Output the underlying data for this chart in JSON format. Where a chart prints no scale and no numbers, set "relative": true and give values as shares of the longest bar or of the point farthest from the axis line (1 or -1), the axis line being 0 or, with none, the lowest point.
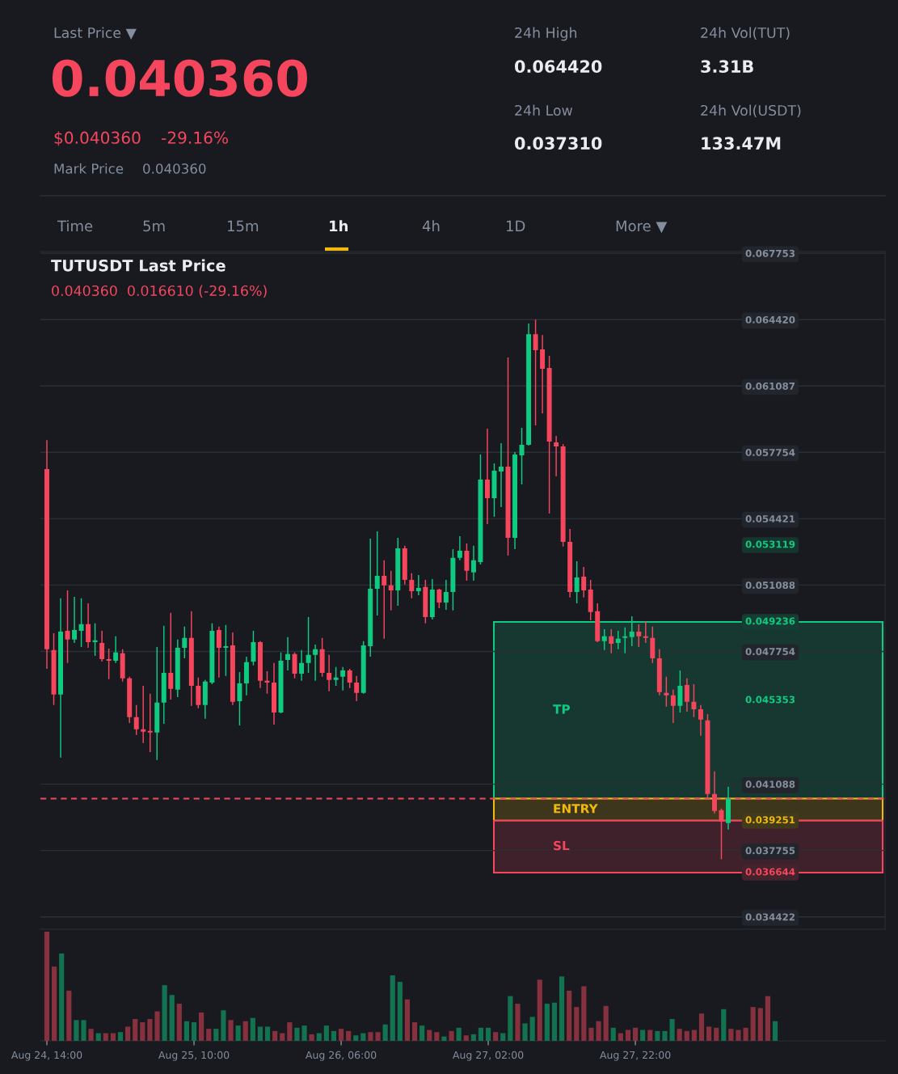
{
  "chart_data": [
    {
      "type": "other",
      "annotations": [
        "Last Price ▼",
        "0.040360",
        "$0.040360",
        "-29.16%",
        "Mark Price",
        "0.040360",
        "24h High",
        "0.064420",
        "24h Low",
        "0.037310",
        "24h Vol(TUT)",
        "3.31B",
        "24h Vol(USDT)",
        "133.47M",
        "Time",
        "5m",
        "15m",
        "1h",
        "4h",
        "1D",
        "More ▼"
      ]
    },
    {
      "type": "candlestick",
      "title": "TUTUSDT Last Price",
      "subtitle": "0.040360  0.016610 (-29.16%)",
      "categories": [
        null,
        null,
        null,
        null,
        null,
        null,
        null,
        null,
        null,
        null,
        null,
        null,
        null,
        null,
        null,
        null,
        null,
        null,
        null,
        null,
        null,
        null,
        null,
        null,
        null,
        null,
        null,
        null,
        null,
        null,
        null,
        null,
        null,
        null,
        null,
        null,
        null,
        null,
        null,
        null,
        null,
        null,
        null,
        null,
        null,
        null,
        null,
        null,
        null,
        null,
        null,
        null,
        null,
        null,
        null,
        null,
        null,
        null,
        null,
        null,
        null,
        null,
        null,
        null,
        null,
        null,
        null,
        null,
        null,
        null,
        null,
        null,
        null,
        null,
        null,
        null,
        null,
        null,
        null,
        null,
        null,
        null,
        null,
        null,
        null,
        null,
        null,
        null,
        null,
        null,
        null,
        null,
        null,
        null,
        null,
        null,
        null,
        null,
        null,
        null
      ],
      "ohlc": [
        [
          0.05691,
          0.05837,
          0.04688,
          0.04786
        ],
        [
          0.04782,
          0.04867,
          0.04506,
          0.04559
        ],
        [
          0.04559,
          0.05042,
          0.04242,
          0.04875
        ],
        [
          0.04879,
          0.05082,
          0.04717,
          0.04835
        ],
        [
          0.04835,
          0.0505,
          0.04818,
          0.04883
        ],
        [
          0.04879,
          0.05042,
          0.04798,
          0.04912
        ],
        [
          0.04912,
          0.05017,
          0.04794,
          0.04822
        ],
        [
          0.04822,
          0.04916,
          0.04753,
          0.04831
        ],
        [
          0.04818,
          0.04879,
          0.04725,
          0.04737
        ],
        [
          0.04737,
          0.0479,
          0.04636,
          0.04729
        ],
        [
          0.04729,
          0.04851,
          0.04717,
          0.0477
        ],
        [
          0.04766,
          0.04786,
          0.04624,
          0.0464
        ],
        [
          0.0464,
          0.04648,
          0.04416,
          0.04445
        ],
        [
          0.04445,
          0.04506,
          0.04356,
          0.04384
        ],
        [
          0.04384,
          0.04603,
          0.04315,
          0.04372
        ],
        [
          0.04376,
          0.04563,
          0.0427,
          0.04368
        ],
        [
          0.04368,
          0.04798,
          0.0423,
          0.04518
        ],
        [
          0.04518,
          0.04904,
          0.04412,
          0.04668
        ],
        [
          0.04668,
          0.04969,
          0.04534,
          0.04587
        ],
        [
          0.04583,
          0.04835,
          0.04546,
          0.04794
        ],
        [
          0.04794,
          0.049,
          0.04741,
          0.04843
        ],
        [
          0.04843,
          0.04977,
          0.04502,
          0.04603
        ],
        [
          0.04603,
          0.04644,
          0.0449,
          0.04506
        ],
        [
          0.04506,
          0.04632,
          0.04437,
          0.04624
        ],
        [
          0.04619,
          0.04916,
          0.04611,
          0.04879
        ],
        [
          0.04883,
          0.049,
          0.04644,
          0.04794
        ],
        [
          0.04794,
          0.04908,
          0.04652,
          0.04802
        ],
        [
          0.04806,
          0.04871,
          0.04506,
          0.04522
        ],
        [
          0.04526,
          0.04672,
          0.04404,
          0.04615
        ],
        [
          0.04615,
          0.04749,
          0.04555,
          0.04721
        ],
        [
          0.04725,
          0.04879,
          0.04705,
          0.04822
        ],
        [
          0.04822,
          0.04827,
          0.04591,
          0.04628
        ],
        [
          0.04628,
          0.04676,
          0.04563,
          0.04619
        ],
        [
          0.04619,
          0.04717,
          0.04408,
          0.04469
        ],
        [
          0.04469,
          0.0477,
          0.04465,
          0.04729
        ],
        [
          0.04733,
          0.04847,
          0.0468,
          0.04762
        ],
        [
          0.04762,
          0.0477,
          0.0464,
          0.04664
        ],
        [
          0.04664,
          0.04782,
          0.04628,
          0.04717
        ],
        [
          0.04717,
          0.04948,
          0.04668,
          0.04758
        ],
        [
          0.04758,
          0.0481,
          0.04628,
          0.04786
        ],
        [
          0.04786,
          0.04843,
          0.04648,
          0.04668
        ],
        [
          0.04668,
          0.04758,
          0.04575,
          0.04632
        ],
        [
          0.04632,
          0.04697,
          0.04603,
          0.04644
        ],
        [
          0.04648,
          0.04697,
          0.04579,
          0.0468
        ],
        [
          0.0468,
          0.04688,
          0.04591,
          0.04619
        ],
        [
          0.04619,
          0.04652,
          0.04526,
          0.04567
        ],
        [
          0.04567,
          0.04827,
          0.04563,
          0.04806
        ],
        [
          0.04802,
          0.05342,
          0.04749,
          0.0509
        ],
        [
          0.0509,
          0.05379,
          0.04956,
          0.05155
        ],
        [
          0.05155,
          0.05233,
          0.04839,
          0.05107
        ],
        [
          0.05107,
          0.0518,
          0.04981,
          0.05082
        ],
        [
          0.05082,
          0.05346,
          0.05005,
          0.05293
        ],
        [
          0.05293,
          0.05306,
          0.05111,
          0.05135
        ],
        [
          0.05135,
          0.05168,
          0.05042,
          0.05078
        ],
        [
          0.05078,
          0.05159,
          0.05058,
          0.05094
        ],
        [
          0.05099,
          0.05135,
          0.04916,
          0.04948
        ],
        [
          0.04948,
          0.05139,
          0.04936,
          0.05086
        ],
        [
          0.05086,
          0.0509,
          0.04993,
          0.05021
        ],
        [
          0.05021,
          0.05135,
          0.04985,
          0.05074
        ],
        [
          0.05074,
          0.05289,
          0.04981,
          0.05245
        ],
        [
          0.05245,
          0.05354,
          0.05233,
          0.05281
        ],
        [
          0.05281,
          0.05318,
          0.05131,
          0.0518
        ],
        [
          0.05172,
          0.05306,
          0.05131,
          0.05233
        ],
        [
          0.05224,
          0.05764,
          0.05212,
          0.05639
        ],
        [
          0.05639,
          0.05894,
          0.05415,
          0.05545
        ],
        [
          0.05545,
          0.0572,
          0.05452,
          0.05683
        ],
        [
          0.05679,
          0.05821,
          0.055,
          0.05703
        ],
        [
          0.05703,
          0.06252,
          0.05257,
          0.05346
        ],
        [
          0.05346,
          0.05777,
          0.05289,
          0.05764
        ],
        [
          0.0576,
          0.05898,
          0.05614,
          0.05813
        ],
        [
          0.05813,
          0.06422,
          0.05809,
          0.06369
        ],
        [
          0.06369,
          0.06442,
          0.05911,
          0.06288
        ],
        [
          0.06292,
          0.06365,
          0.05971,
          0.06195
        ],
        [
          0.06199,
          0.0626,
          0.05468,
          0.05829
        ],
        [
          0.05825,
          0.05858,
          0.05655,
          0.05805
        ],
        [
          0.05805,
          0.05817,
          0.05302,
          0.05326
        ],
        [
          0.05326,
          0.05391,
          0.05046,
          0.05074
        ],
        [
          0.05074,
          0.05228,
          0.05017,
          0.05147
        ],
        [
          0.05151,
          0.052,
          0.05046,
          0.05082
        ],
        [
          0.05086,
          0.05135,
          0.04932,
          0.04973
        ],
        [
          0.04977,
          0.05017,
          0.04822,
          0.04827
        ],
        [
          0.04827,
          0.04887,
          0.04782,
          0.04851
        ],
        [
          0.04851,
          0.04887,
          0.04766,
          0.04814
        ],
        [
          0.04818,
          0.04879,
          0.04786,
          0.04839
        ],
        [
          0.04843,
          0.04896,
          0.04766,
          0.04851
        ],
        [
          0.04847,
          0.04952,
          0.04802,
          0.04875
        ],
        [
          0.04875,
          0.04912,
          0.04798,
          0.04851
        ],
        [
          0.04851,
          0.04928,
          0.04818,
          0.04843
        ],
        [
          0.04843,
          0.049,
          0.04717,
          0.04741
        ],
        [
          0.04741,
          0.04786,
          0.04555,
          0.04571
        ],
        [
          0.04567,
          0.04648,
          0.04498,
          0.04555
        ],
        [
          0.04555,
          0.04583,
          0.04416,
          0.04502
        ],
        [
          0.04502,
          0.0468,
          0.04469,
          0.04603
        ],
        [
          0.04607,
          0.0464,
          0.04473,
          0.04522
        ],
        [
          0.04522,
          0.04611,
          0.04445,
          0.04485
        ],
        [
          0.04485,
          0.04506,
          0.04352,
          0.04433
        ],
        [
          0.04429,
          0.04461,
          0.04043,
          0.04059
        ],
        [
          0.04059,
          0.04173,
          0.03962,
          0.03974
        ],
        [
          0.03978,
          0.03986,
          0.03731,
          0.03921
        ],
        [
          0.03913,
          0.04096,
          0.03881,
          0.04036
        ]
      ],
      "colors": [
        "#f6465d",
        "#f6465d",
        "#0ecb81",
        "#f6465d",
        "#0ecb81",
        "#0ecb81",
        "#f6465d",
        "#0ecb81",
        "#f6465d",
        "#f6465d",
        "#0ecb81",
        "#f6465d",
        "#f6465d",
        "#f6465d",
        "#f6465d",
        "#f6465d",
        "#0ecb81",
        "#0ecb81",
        "#f6465d",
        "#0ecb81",
        "#0ecb81",
        "#f6465d",
        "#f6465d",
        "#0ecb81",
        "#0ecb81",
        "#f6465d",
        "#0ecb81",
        "#f6465d",
        "#0ecb81",
        "#0ecb81",
        "#0ecb81",
        "#f6465d",
        "#f6465d",
        "#f6465d",
        "#0ecb81",
        "#0ecb81",
        "#f6465d",
        "#0ecb81",
        "#0ecb81",
        "#0ecb81",
        "#f6465d",
        "#f6465d",
        "#0ecb81",
        "#0ecb81",
        "#f6465d",
        "#f6465d",
        "#0ecb81",
        "#0ecb81",
        "#0ecb81",
        "#f6465d",
        "#f6465d",
        "#0ecb81",
        "#f6465d",
        "#f6465d",
        "#0ecb81",
        "#f6465d",
        "#0ecb81",
        "#f6465d",
        "#0ecb81",
        "#0ecb81",
        "#0ecb81",
        "#f6465d",
        "#0ecb81",
        "#0ecb81",
        "#f6465d",
        "#0ecb81",
        "#0ecb81",
        "#f6465d",
        "#0ecb81",
        "#0ecb81",
        "#0ecb81",
        "#f6465d",
        "#f6465d",
        "#f6465d",
        "#f6465d",
        "#f6465d",
        "#f6465d",
        "#0ecb81",
        "#f6465d",
        "#f6465d",
        "#f6465d",
        "#0ecb81",
        "#f6465d",
        "#0ecb81",
        "#0ecb81",
        "#0ecb81",
        "#f6465d",
        "#f6465d",
        "#f6465d",
        "#f6465d",
        "#f6465d",
        "#f6465d",
        "#0ecb81",
        "#f6465d",
        "#f6465d",
        "#f6465d",
        "#f6465d",
        "#f6465d",
        "#f6465d",
        "#0ecb81"
      ],
      "ylim": [
        0.0338,
        0.06784
      ],
      "yticks": [
        0.067753,
        {
          "value": 0.06442,
          "label": "0.064420"
        },
        0.061087,
        0.057754,
        0.054421,
        0.051088,
        0.047754,
        0.041088,
        0.037755,
        0.034422
      ],
      "grid": "y",
      "tick_labels": "y",
      "ref_lines": [
        {
          "axis": "y",
          "value": 0.04036,
          "color": "#f6465d",
          "line_style": "dashed"
        }
      ],
      "bands": [
        {
          "axis": "y",
          "from": 0.04036,
          "to": 0.049236,
          "label": "TP",
          "color": "#0ecb81"
        },
        {
          "axis": "y",
          "from": 0.039251,
          "to": 0.04036,
          "label": "ENTRY",
          "color": "#f0b90b"
        },
        {
          "axis": "y",
          "from": 0.036644,
          "to": 0.039251,
          "label": "SL",
          "color": "#f6465d"
        }
      ],
      "annotations": [
        "0.053119",
        {
          "text": "0.049236",
          "y": 0.049236
        },
        "0.045353",
        {
          "text": "0.039251",
          "y": 0.039251
        },
        {
          "text": "0.036644",
          "y": 0.036644
        }
      ]
    },
    {
      "type": "bar",
      "relative": true,
      "categories": [
        "Aug 24, 14:00",
        null,
        null,
        null,
        null,
        null,
        null,
        null,
        null,
        null,
        null,
        null,
        null,
        null,
        null,
        null,
        null,
        null,
        null,
        null,
        "Aug 25, 10:00",
        null,
        null,
        null,
        null,
        null,
        null,
        null,
        null,
        null,
        null,
        null,
        null,
        null,
        null,
        null,
        null,
        null,
        null,
        null,
        "Aug 26, 06:00",
        null,
        null,
        null,
        null,
        null,
        null,
        null,
        null,
        null,
        null,
        null,
        null,
        null,
        null,
        null,
        null,
        null,
        null,
        null,
        "Aug 27, 02:00",
        null,
        null,
        null,
        null,
        null,
        null,
        null,
        null,
        null,
        null,
        null,
        null,
        null,
        null,
        null,
        null,
        null,
        null,
        null,
        "Aug 27, 22:00",
        null,
        null,
        null,
        null,
        null,
        null,
        null,
        null,
        null,
        null,
        null,
        null,
        null,
        null,
        null,
        null,
        null,
        null,
        null
      ],
      "values": [
        1,
        0.68,
        0.8,
        0.46,
        0.19,
        0.19,
        0.11,
        0.07,
        0.07,
        0.07,
        0.08,
        0.13,
        0.2,
        0.17,
        0.2,
        0.27,
        0.51,
        0.42,
        0.34,
        0.18,
        0.17,
        0.26,
        0.11,
        0.11,
        0.28,
        0.19,
        0.14,
        0.18,
        0.21,
        0.13,
        0.13,
        0.09,
        0.07,
        0.17,
        0.12,
        0.14,
        0.06,
        0.07,
        0.14,
        0.09,
        0.11,
        0.09,
        0.05,
        0.07,
        0.08,
        0.08,
        0.15,
        0.6,
        0.54,
        0.38,
        0.17,
        0.14,
        0.1,
        0.08,
        0.04,
        0.09,
        0.12,
        0.05,
        0.06,
        0.12,
        0.12,
        0.08,
        0.07,
        0.41,
        0.34,
        0.16,
        0.22,
        0.56,
        0.34,
        0.35,
        0.59,
        0.46,
        0.31,
        0.5,
        0.12,
        0.18,
        0.32,
        0.12,
        0.07,
        0.1,
        0.12,
        0.1,
        0.1,
        0.09,
        0.09,
        0.2,
        0.11,
        0.09,
        0.1,
        0.25,
        0.13,
        0.12,
        0.29,
        0.11,
        0.1,
        0.12,
        0.31,
        0.3,
        0.41,
        0.18
      ],
      "colors": [
        "#87303e",
        "#87303e",
        "#137250",
        "#87303e",
        "#137250",
        "#137250",
        "#87303e",
        "#137250",
        "#87303e",
        "#87303e",
        "#137250",
        "#87303e",
        "#87303e",
        "#87303e",
        "#87303e",
        "#87303e",
        "#137250",
        "#137250",
        "#87303e",
        "#137250",
        "#137250",
        "#87303e",
        "#87303e",
        "#137250",
        "#137250",
        "#87303e",
        "#137250",
        "#87303e",
        "#137250",
        "#137250",
        "#137250",
        "#87303e",
        "#87303e",
        "#87303e",
        "#137250",
        "#137250",
        "#87303e",
        "#137250",
        "#137250",
        "#137250",
        "#87303e",
        "#87303e",
        "#137250",
        "#137250",
        "#87303e",
        "#87303e",
        "#137250",
        "#137250",
        "#137250",
        "#87303e",
        "#87303e",
        "#137250",
        "#87303e",
        "#87303e",
        "#137250",
        "#87303e",
        "#137250",
        "#87303e",
        "#137250",
        "#137250",
        "#137250",
        "#87303e",
        "#137250",
        "#137250",
        "#87303e",
        "#137250",
        "#137250",
        "#87303e",
        "#137250",
        "#137250",
        "#137250",
        "#87303e",
        "#87303e",
        "#87303e",
        "#87303e",
        "#87303e",
        "#87303e",
        "#137250",
        "#87303e",
        "#87303e",
        "#87303e",
        "#137250",
        "#87303e",
        "#137250",
        "#137250",
        "#137250",
        "#87303e",
        "#87303e",
        "#87303e",
        "#87303e",
        "#87303e",
        "#87303e",
        "#137250",
        "#87303e",
        "#87303e",
        "#87303e",
        "#87303e",
        "#87303e",
        "#87303e",
        "#137250"
      ]
    }
  ]
}
